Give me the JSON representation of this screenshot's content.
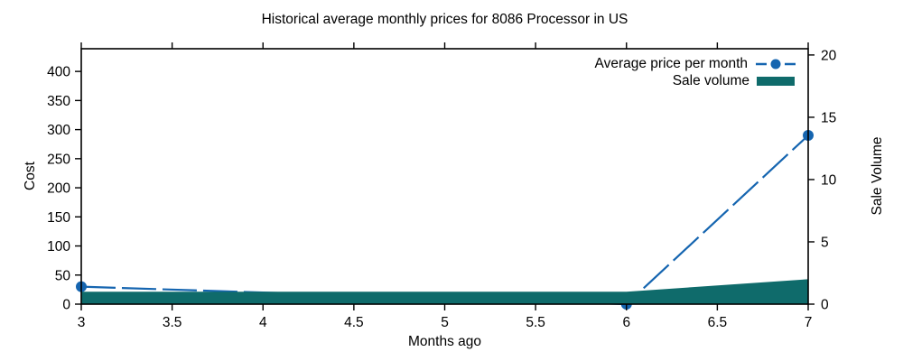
{
  "chart_data": {
    "type": "line",
    "title": "Historical average monthly prices for 8086 Processor in US",
    "legend_position": "top-right-inside",
    "grid": false,
    "axes": {
      "x": {
        "label": "Months ago",
        "min": 3,
        "max": 7,
        "ticks": [
          3,
          3.5,
          4,
          4.5,
          5,
          5.5,
          6,
          6.5,
          7
        ],
        "tick_labels": [
          "3",
          "3.5",
          "4",
          "4.5",
          "5",
          "5.5",
          "6",
          "6.5",
          "7"
        ]
      },
      "y_left": {
        "label": "Cost",
        "min": 0,
        "max": 439,
        "ticks": [
          0,
          50,
          100,
          150,
          200,
          250,
          300,
          350,
          400
        ]
      },
      "y_right": {
        "label": "Sale Volume",
        "min": 0,
        "max": 20.5,
        "ticks": [
          0,
          5,
          10,
          15,
          20
        ]
      }
    },
    "series": [
      {
        "name": "Average price per month",
        "type": "line",
        "axis": "left",
        "color": "#1565b0",
        "dashed": true,
        "marker": "circle",
        "points": [
          [
            3,
            30
          ],
          [
            6,
            0
          ],
          [
            7,
            290
          ]
        ]
      },
      {
        "name": "Sale volume",
        "type": "area",
        "axis": "right",
        "color": "#0f6b6b",
        "points": [
          [
            3,
            1
          ],
          [
            6,
            1
          ],
          [
            7,
            2
          ]
        ]
      }
    ]
  }
}
